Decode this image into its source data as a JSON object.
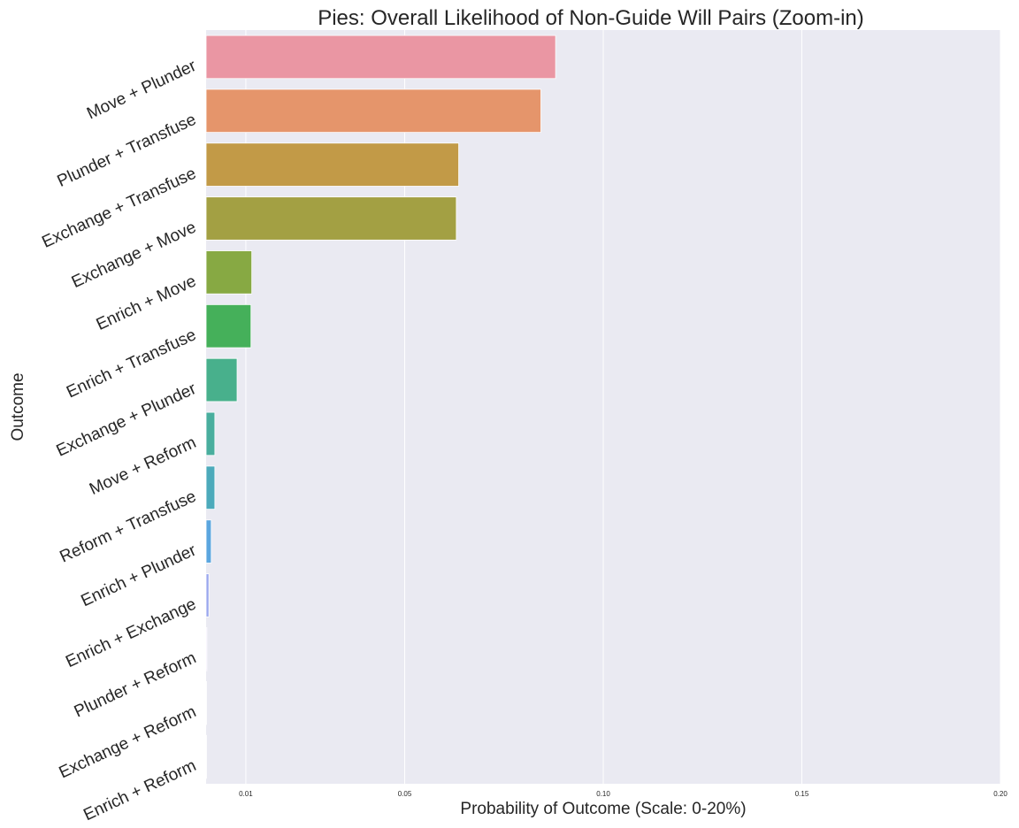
{
  "chart_data": {
    "type": "bar",
    "orientation": "horizontal",
    "title": "Pies: Overall Likelihood of Non-Guide Will Pairs (Zoom-in)",
    "xlabel": "Probability of Outcome (Scale: 0-20%)",
    "ylabel": "Outcome",
    "xlim": [
      0,
      0.2
    ],
    "x_ticks": [
      0.01,
      0.05,
      0.1,
      0.15,
      0.2
    ],
    "x_tick_labels": [
      "0.01",
      "0.05",
      "0.10",
      "0.15",
      "0.20"
    ],
    "grid": true,
    "categories": [
      "Move + Plunder",
      "Plunder + Transfuse",
      "Exchange + Transfuse",
      "Exchange + Move",
      "Enrich + Move",
      "Enrich + Transfuse",
      "Exchange + Plunder",
      "Move + Reform",
      "Reform + Transfuse",
      "Enrich + Plunder",
      "Enrich + Exchange",
      "Plunder + Reform",
      "Exchange + Reform",
      "Enrich + Reform"
    ],
    "values": [
      0.088,
      0.0843,
      0.0636,
      0.063,
      0.0115,
      0.0113,
      0.0078,
      0.0022,
      0.0022,
      0.0013,
      0.0007,
      0.0002,
      0.0001,
      0.0001
    ],
    "colors": [
      "#ea96a3",
      "#e5956b",
      "#c29a47",
      "#a3a043",
      "#87a943",
      "#45b05a",
      "#48b08c",
      "#49ae9e",
      "#4caabb",
      "#5ba6df",
      "#9aa7ee",
      "#c9a3f0",
      "#e49ae7",
      "#e996cc"
    ]
  }
}
